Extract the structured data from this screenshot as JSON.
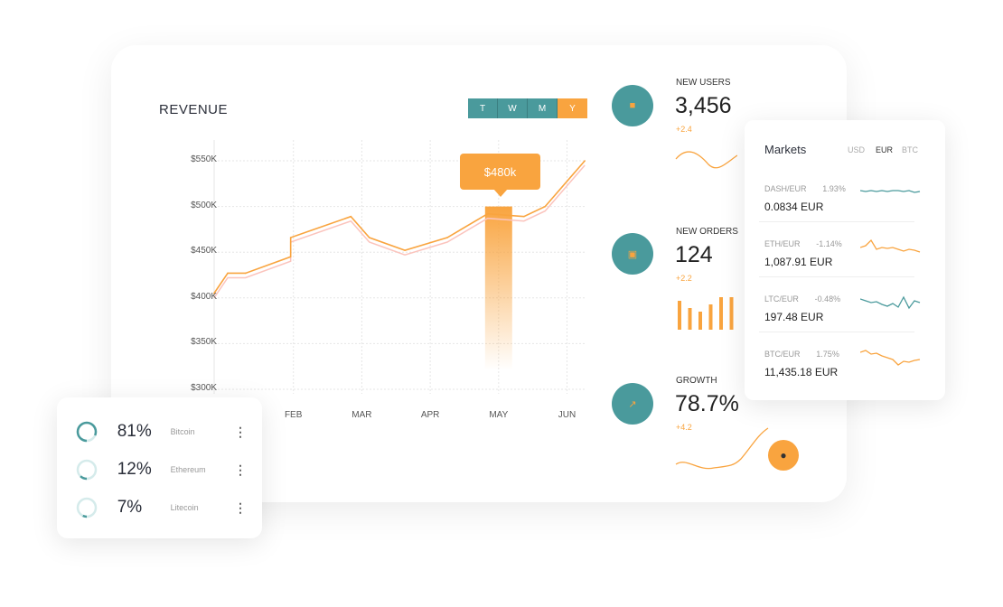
{
  "revenue": {
    "title": "REVENUE",
    "periods": [
      "T",
      "W",
      "M",
      "Y"
    ],
    "active_period": "Y",
    "tooltip": "$480k"
  },
  "chart_data": {
    "type": "line",
    "title": "REVENUE",
    "yticks": [
      "$550K",
      "$500K",
      "$450K",
      "$400K",
      "$350K",
      "$300K"
    ],
    "xticks": [
      "FEB",
      "MAR",
      "APR",
      "MAY",
      "JUN"
    ],
    "ylim": [
      300,
      550
    ],
    "yunit": "$K",
    "grid": true,
    "points": [
      [
        0.84,
        405
      ],
      [
        1.04,
        427
      ],
      [
        1.3,
        427
      ],
      [
        1.96,
        445
      ],
      [
        1.96,
        466
      ],
      [
        2.84,
        489
      ],
      [
        3.11,
        466
      ],
      [
        3.63,
        452
      ],
      [
        4.25,
        466
      ],
      [
        4.84,
        492
      ],
      [
        5.37,
        489
      ],
      [
        5.68,
        500
      ],
      [
        6.26,
        550
      ]
    ],
    "highlight": {
      "month": "MAY",
      "value": 480
    }
  },
  "stats": [
    {
      "label": "NEW USERS",
      "value": "3,456",
      "delta": "+2.4",
      "icon": "users-icon"
    },
    {
      "label": "NEW ORDERS",
      "value": "124",
      "delta": "+2.2",
      "icon": "bag-icon",
      "bars": [
        8,
        6,
        5,
        7,
        9,
        9
      ]
    },
    {
      "label": "GROWTH",
      "value": "78.7%",
      "delta": "+4.2",
      "icon": "trend-icon"
    }
  ],
  "markets": {
    "title": "Markets",
    "currencies": [
      "USD",
      "EUR",
      "BTC"
    ],
    "active": "EUR",
    "rows": [
      {
        "pair": "DASH/EUR",
        "change": "1.93%",
        "price": "0.0834  EUR",
        "color": "#4a9a9c"
      },
      {
        "pair": "ETH/EUR",
        "change": "-1.14%",
        "price": "1,087.91  EUR",
        "color": "#f9a43f"
      },
      {
        "pair": "LTC/EUR",
        "change": "-0.48%",
        "price": "197.48  EUR",
        "color": "#4a9a9c"
      },
      {
        "pair": "BTC/EUR",
        "change": "1.75%",
        "price": "11,435.18 EUR",
        "color": "#f9a43f"
      }
    ]
  },
  "crypto": [
    {
      "pct": "81%",
      "name": "Bitcoin",
      "fraction": 0.81
    },
    {
      "pct": "12%",
      "name": "Ethereum",
      "fraction": 0.12
    },
    {
      "pct": "7%",
      "name": "Litecoin",
      "fraction": 0.07
    }
  ],
  "colors": {
    "teal": "#4a9a9c",
    "orange": "#f9a43f"
  }
}
